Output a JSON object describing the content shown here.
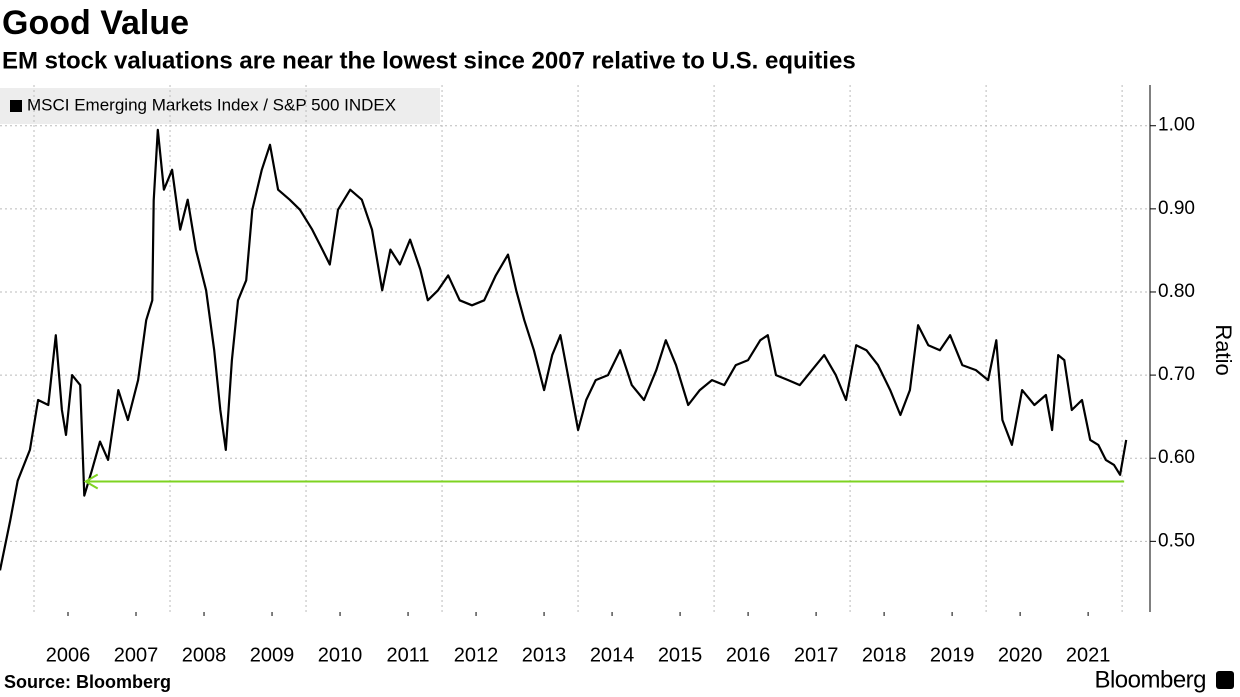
{
  "chart_data": {
    "type": "line",
    "title": "Good Value",
    "subtitle": "EM stock valuations are near the lowest since 2007 relative to U.S. equities",
    "y_axis_label": "Ratio",
    "source": "Source: Bloomberg",
    "brand": "Bloomberg",
    "legend_position": "top-left",
    "grid": true,
    "x": [
      2005.5,
      2005.65,
      2005.76,
      2005.94,
      2006.06,
      2006.21,
      2006.32,
      2006.41,
      2006.47,
      2006.56,
      2006.68,
      2006.74,
      2006.85,
      2006.97,
      2007.09,
      2007.24,
      2007.38,
      2007.53,
      2007.65,
      2007.74,
      2007.76,
      2007.82,
      2007.91,
      2008.03,
      2008.15,
      2008.26,
      2008.38,
      2008.53,
      2008.65,
      2008.74,
      2008.82,
      2008.91,
      2009.0,
      2009.12,
      2009.21,
      2009.35,
      2009.47,
      2009.59,
      2009.76,
      2009.91,
      2010.09,
      2010.24,
      2010.35,
      2010.47,
      2010.65,
      2010.82,
      2010.97,
      2011.12,
      2011.24,
      2011.38,
      2011.53,
      2011.68,
      2011.79,
      2011.94,
      2012.09,
      2012.26,
      2012.44,
      2012.62,
      2012.79,
      2012.97,
      2013.09,
      2013.21,
      2013.35,
      2013.5,
      2013.62,
      2013.74,
      2013.85,
      2014.0,
      2014.12,
      2014.26,
      2014.44,
      2014.62,
      2014.79,
      2014.97,
      2015.15,
      2015.29,
      2015.44,
      2015.62,
      2015.79,
      2015.97,
      2016.15,
      2016.32,
      2016.5,
      2016.68,
      2016.79,
      2016.91,
      2017.09,
      2017.26,
      2017.44,
      2017.62,
      2017.79,
      2017.94,
      2018.09,
      2018.24,
      2018.41,
      2018.59,
      2018.74,
      2018.88,
      2019.0,
      2019.15,
      2019.32,
      2019.47,
      2019.65,
      2019.85,
      2020.03,
      2020.15,
      2020.24,
      2020.38,
      2020.53,
      2020.71,
      2020.88,
      2020.97,
      2021.06,
      2021.15,
      2021.26,
      2021.41,
      2021.53,
      2021.65,
      2021.76,
      2021.88,
      2021.97,
      2022.06
    ],
    "series": [
      {
        "name": "MSCI Emerging Markets Index / S&P 500 INDEX",
        "color": "#000000",
        "values": [
          0.465,
          0.525,
          0.573,
          0.61,
          0.67,
          0.664,
          0.748,
          0.658,
          0.628,
          0.7,
          0.688,
          0.555,
          0.585,
          0.62,
          0.598,
          0.682,
          0.646,
          0.694,
          0.766,
          0.79,
          0.91,
          0.995,
          0.923,
          0.947,
          0.875,
          0.911,
          0.851,
          0.802,
          0.73,
          0.658,
          0.61,
          0.718,
          0.79,
          0.814,
          0.899,
          0.947,
          0.977,
          0.923,
          0.911,
          0.899,
          0.875,
          0.851,
          0.833,
          0.899,
          0.923,
          0.911,
          0.875,
          0.802,
          0.851,
          0.833,
          0.863,
          0.827,
          0.79,
          0.802,
          0.82,
          0.79,
          0.784,
          0.79,
          0.82,
          0.845,
          0.802,
          0.766,
          0.73,
          0.682,
          0.724,
          0.748,
          0.7,
          0.634,
          0.67,
          0.694,
          0.7,
          0.73,
          0.688,
          0.67,
          0.706,
          0.742,
          0.712,
          0.664,
          0.682,
          0.694,
          0.688,
          0.712,
          0.718,
          0.742,
          0.748,
          0.7,
          0.694,
          0.688,
          0.706,
          0.724,
          0.7,
          0.67,
          0.736,
          0.73,
          0.712,
          0.682,
          0.652,
          0.682,
          0.76,
          0.736,
          0.73,
          0.748,
          0.712,
          0.706,
          0.694,
          0.742,
          0.646,
          0.616,
          0.682,
          0.664,
          0.676,
          0.634,
          0.724,
          0.718,
          0.658,
          0.67,
          0.622,
          0.616,
          0.598,
          0.592,
          0.58,
          0.622
        ]
      }
    ],
    "annotation_arrow": {
      "y": 0.572,
      "x": [
        2022.03,
        2006.76
      ],
      "color": "#7ed321"
    },
    "xlim": [
      2005.5,
      2022.41
    ],
    "ylim": [
      0.415,
      1.049
    ],
    "xticks": [
      {
        "value": 2006.5,
        "label": "2006"
      },
      {
        "value": 2007.5,
        "label": "2007"
      },
      {
        "value": 2008.5,
        "label": "2008"
      },
      {
        "value": 2009.5,
        "label": "2009"
      },
      {
        "value": 2010.5,
        "label": "2010"
      },
      {
        "value": 2011.5,
        "label": "2011"
      },
      {
        "value": 2012.5,
        "label": "2012"
      },
      {
        "value": 2013.5,
        "label": "2013"
      },
      {
        "value": 2014.5,
        "label": "2014"
      },
      {
        "value": 2015.5,
        "label": "2015"
      },
      {
        "value": 2016.5,
        "label": "2016"
      },
      {
        "value": 2017.5,
        "label": "2017"
      },
      {
        "value": 2018.5,
        "label": "2018"
      },
      {
        "value": 2019.5,
        "label": "2019"
      },
      {
        "value": 2020.5,
        "label": "2020"
      },
      {
        "value": 2021.5,
        "label": "2021"
      }
    ],
    "xgrid": [
      2006,
      2008,
      2010,
      2012,
      2014,
      2016,
      2018,
      2020,
      2022
    ],
    "yticks": [
      {
        "value": 0.5,
        "label": "0.50"
      },
      {
        "value": 0.6,
        "label": "0.60"
      },
      {
        "value": 0.7,
        "label": "0.70"
      },
      {
        "value": 0.8,
        "label": "0.80"
      },
      {
        "value": 0.9,
        "label": "0.90"
      },
      {
        "value": 1.0,
        "label": "1.00"
      }
    ]
  }
}
